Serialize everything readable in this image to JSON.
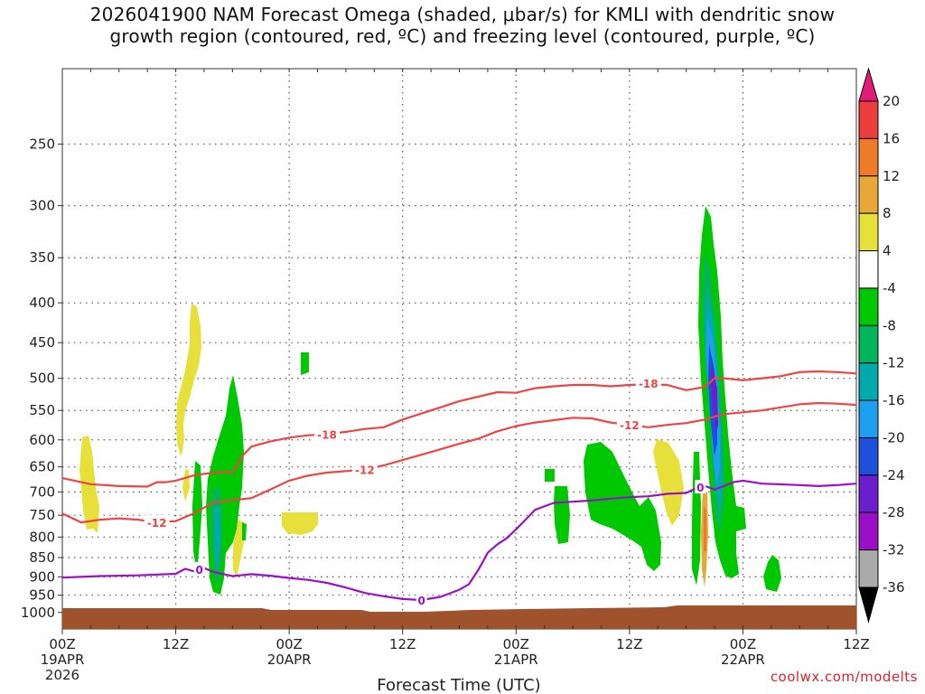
{
  "title": {
    "line1": "2026041900 NAM Forecast Omega (shaded, μbar/s) for KMLI with dendritic snow",
    "line2": "growth region (contoured, red, ºC) and freezing level (contoured, purple, ºC)"
  },
  "credit": "coolwx.com/modelts",
  "chart_data": {
    "type": "heatmap",
    "xlabel": "Forecast Time (UTC)",
    "x_unit": "hours from 2026-04-19 00Z",
    "x_ticks": [
      {
        "hour": 0,
        "label": [
          "00Z",
          "19APR",
          "2026"
        ]
      },
      {
        "hour": 12,
        "label": [
          "12Z"
        ]
      },
      {
        "hour": 24,
        "label": [
          "00Z",
          "20APR"
        ]
      },
      {
        "hour": 36,
        "label": [
          "12Z"
        ]
      },
      {
        "hour": 48,
        "label": [
          "00Z",
          "21APR"
        ]
      },
      {
        "hour": 60,
        "label": [
          "12Z"
        ]
      },
      {
        "hour": 72,
        "label": [
          "00Z",
          "22APR"
        ]
      },
      {
        "hour": 84,
        "label": [
          "12Z"
        ]
      }
    ],
    "y_ticks": [
      250,
      300,
      350,
      400,
      450,
      500,
      550,
      600,
      650,
      700,
      750,
      800,
      850,
      900,
      950,
      1000
    ],
    "y_scale": "log",
    "xlim": [
      0,
      84
    ],
    "ylim": [
      1050,
      200
    ],
    "grid": true,
    "colorbar": {
      "labels": [
        "20",
        "16",
        "12",
        "8",
        "4",
        "-4",
        "-8",
        "-12",
        "-16",
        "-20",
        "-24",
        "-28",
        "-32",
        "-36"
      ],
      "colors": [
        "#e21b7a",
        "#ee3d3d",
        "#ee7a2a",
        "#e8a838",
        "#e8e03a",
        "#ffffff",
        "#00c800",
        "#00b45a",
        "#00aaaa",
        "#1ea0f0",
        "#1e50dc",
        "#6a1ecc",
        "#9a10c8",
        "#aaaaaa",
        "#000000"
      ]
    },
    "contours": [
      {
        "level": "-18",
        "color": "#ee4444",
        "points": [
          [
            0,
            672
          ],
          [
            3,
            684
          ],
          [
            6,
            688
          ],
          [
            9,
            689
          ],
          [
            10,
            680
          ],
          [
            11,
            680
          ],
          [
            12,
            677
          ],
          [
            14,
            666
          ],
          [
            16,
            661
          ],
          [
            18,
            660
          ],
          [
            18.5,
            648
          ],
          [
            19,
            630
          ],
          [
            20,
            612
          ],
          [
            22,
            603
          ],
          [
            24,
            596
          ],
          [
            26,
            592
          ],
          [
            28,
            590
          ],
          [
            30,
            586
          ],
          [
            32,
            581
          ],
          [
            34,
            578
          ],
          [
            36,
            565
          ],
          [
            38,
            555
          ],
          [
            40,
            545
          ],
          [
            42,
            535
          ],
          [
            44,
            528
          ],
          [
            46,
            521
          ],
          [
            48,
            522
          ],
          [
            50,
            515
          ],
          [
            52,
            512
          ],
          [
            54,
            510
          ],
          [
            56,
            510
          ],
          [
            58,
            512
          ],
          [
            60,
            510
          ],
          [
            62,
            509
          ],
          [
            64,
            510
          ],
          [
            66,
            518
          ],
          [
            68,
            513
          ],
          [
            69,
            500
          ],
          [
            70,
            500
          ],
          [
            72,
            503
          ],
          [
            74,
            500
          ],
          [
            76,
            497
          ],
          [
            78,
            491
          ],
          [
            80,
            490
          ],
          [
            82,
            491
          ],
          [
            84,
            493
          ]
        ]
      },
      {
        "level": "-12",
        "color": "#ee4444",
        "points": [
          [
            0,
            746
          ],
          [
            2,
            766
          ],
          [
            4,
            760
          ],
          [
            6,
            757
          ],
          [
            8,
            760
          ],
          [
            10,
            766
          ],
          [
            12,
            763
          ],
          [
            14,
            745
          ],
          [
            16,
            722
          ],
          [
            18,
            717
          ],
          [
            20,
            713
          ],
          [
            22,
            695
          ],
          [
            24,
            677
          ],
          [
            26,
            667
          ],
          [
            28,
            661
          ],
          [
            30,
            658
          ],
          [
            32,
            655
          ],
          [
            34,
            647
          ],
          [
            36,
            637
          ],
          [
            38,
            627
          ],
          [
            40,
            617
          ],
          [
            42,
            607
          ],
          [
            44,
            598
          ],
          [
            46,
            585
          ],
          [
            48,
            576
          ],
          [
            50,
            570
          ],
          [
            52,
            566
          ],
          [
            54,
            562
          ],
          [
            56,
            563
          ],
          [
            58,
            570
          ],
          [
            60,
            574
          ],
          [
            62,
            578
          ],
          [
            64,
            574
          ],
          [
            66,
            571
          ],
          [
            68,
            565
          ],
          [
            69,
            560
          ],
          [
            70,
            556
          ],
          [
            72,
            553
          ],
          [
            74,
            550
          ],
          [
            76,
            545
          ],
          [
            78,
            540
          ],
          [
            80,
            538
          ],
          [
            82,
            539
          ],
          [
            84,
            541
          ]
        ]
      },
      {
        "level": "0",
        "color": "#9a10c8",
        "points": [
          [
            0,
            902
          ],
          [
            4,
            898
          ],
          [
            8,
            896
          ],
          [
            12,
            892
          ],
          [
            13,
            879
          ],
          [
            14,
            886
          ],
          [
            15,
            877
          ],
          [
            16,
            887
          ],
          [
            18,
            898
          ],
          [
            20,
            893
          ],
          [
            22,
            897
          ],
          [
            24,
            903
          ],
          [
            26,
            908
          ],
          [
            28,
            916
          ],
          [
            30,
            929
          ],
          [
            32,
            944
          ],
          [
            34,
            953
          ],
          [
            36,
            961
          ],
          [
            38,
            964
          ],
          [
            40,
            955
          ],
          [
            42,
            935
          ],
          [
            43,
            920
          ],
          [
            44,
            882
          ],
          [
            44.5,
            860
          ],
          [
            45,
            838
          ],
          [
            46,
            818
          ],
          [
            47,
            803
          ],
          [
            48,
            782
          ],
          [
            49,
            760
          ],
          [
            50,
            738
          ],
          [
            52,
            723
          ],
          [
            56,
            718
          ],
          [
            58,
            714
          ],
          [
            60,
            711
          ],
          [
            62,
            709
          ],
          [
            64,
            704
          ],
          [
            66,
            702
          ],
          [
            67,
            693
          ],
          [
            68,
            688
          ],
          [
            69,
            695
          ],
          [
            70,
            688
          ],
          [
            71,
            680
          ],
          [
            72,
            677
          ],
          [
            74,
            683
          ],
          [
            78,
            686
          ],
          [
            80,
            688
          ],
          [
            82,
            686
          ],
          [
            84,
            683
          ]
        ]
      }
    ],
    "contour_labels": [
      {
        "text": "-18",
        "hour": 28,
        "p": 590,
        "color": "#ee4444"
      },
      {
        "text": "-18",
        "hour": 62,
        "p": 507,
        "color": "#ee4444"
      },
      {
        "text": "-12",
        "hour": 10,
        "p": 766,
        "color": "#ee4444"
      },
      {
        "text": "-12",
        "hour": 32,
        "p": 655,
        "color": "#ee4444"
      },
      {
        "text": "-12",
        "hour": 60,
        "p": 574,
        "color": "#ee4444"
      },
      {
        "text": "0",
        "hour": 14.5,
        "p": 880,
        "color": "#9a10c8"
      },
      {
        "text": "0",
        "hour": 38,
        "p": 964,
        "color": "#9a10c8"
      },
      {
        "text": "0",
        "hour": 67.5,
        "p": 690,
        "color": "#9a10c8"
      }
    ]
  }
}
